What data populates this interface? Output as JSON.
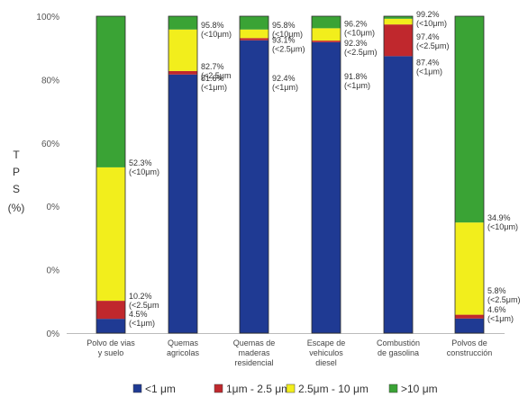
{
  "chart_data": {
    "type": "bar",
    "stacked": true,
    "ylabel": [
      "T",
      "P",
      "S",
      "(%)"
    ],
    "y_ticks": [
      "100%",
      "80%",
      "60%",
      "0%",
      "0%",
      "0%"
    ],
    "ylim": [
      0,
      100
    ],
    "grid": false,
    "legend_position": "bottom",
    "categories": [
      [
        "Polvo de vias",
        "y suelo"
      ],
      [
        "Quemas",
        "agricolas"
      ],
      [
        "Quemas de",
        "maderas",
        "residencial"
      ],
      [
        "Escape de",
        "vehiculos",
        "diesel"
      ],
      [
        "Combustión",
        "de gasolina"
      ],
      [
        "Polvos de",
        "construcción"
      ]
    ],
    "series": [
      {
        "name": "<1 μm",
        "color": "#1f3a93",
        "values": [
          4.5,
          81.6,
          92.4,
          91.8,
          87.4,
          4.6
        ]
      },
      {
        "name": "1μm - 2.5 μm",
        "color": "#c0282d",
        "values": [
          5.7,
          1.1,
          0.7,
          0.5,
          10.0,
          1.2
        ]
      },
      {
        "name": "2.5μm - 10 μm",
        "color": "#f2ee1c",
        "values": [
          42.1,
          13.1,
          2.7,
          3.9,
          1.8,
          29.1
        ]
      },
      {
        "name": ">10 μm",
        "color": "#3aa335",
        "values": [
          47.7,
          4.2,
          4.2,
          3.8,
          0.8,
          65.1
        ]
      }
    ],
    "annotations": [
      [
        {
          "lines": [
            "52.3%",
            "(<10μm)"
          ],
          "at": 52.3
        },
        {
          "lines": [
            "10.2%",
            "(<2.5μm"
          ],
          "at": 10.2
        },
        {
          "lines": [
            "4.5%",
            "(<1μm)"
          ],
          "at": 4.5
        }
      ],
      [
        {
          "lines": [
            "95.8%",
            "(<10μm)"
          ],
          "at": 95.8
        },
        {
          "lines": [
            "82.7%",
            "(<2.5μm"
          ],
          "at": 82.7
        },
        {
          "lines": [
            "81.6%",
            "(<1μm)"
          ],
          "at": 79.0
        }
      ],
      [
        {
          "lines": [
            "95.8%",
            "(<10μm)"
          ],
          "at": 95.8
        },
        {
          "lines": [
            "93.1%",
            "(<2.5μm)"
          ],
          "at": 91.0
        },
        {
          "lines": [
            "92.4%",
            "(<1μm)"
          ],
          "at": 79.0
        }
      ],
      [
        {
          "lines": [
            "96.2%",
            "(<10μm)"
          ],
          "at": 96.2
        },
        {
          "lines": [
            "92.3%",
            "(<2.5μm)"
          ],
          "at": 90.0
        },
        {
          "lines": [
            "91.8%",
            "(<1μm)"
          ],
          "at": 79.5
        }
      ],
      [
        {
          "lines": [
            "99.2%",
            "(<10μm)"
          ],
          "at": 99.2
        },
        {
          "lines": [
            "97.4%",
            "(<2.5μm)"
          ],
          "at": 92.0
        },
        {
          "lines": [
            "87.4%",
            "(<1μm)"
          ],
          "at": 84.0
        }
      ],
      [
        {
          "lines": [
            "34.9%",
            "(<10μm)"
          ],
          "at": 34.9
        },
        {
          "lines": [
            "5.8%",
            "(<2.5μm)"
          ],
          "at": 12.0
        },
        {
          "lines": [
            "4.6%",
            "(<1μm)"
          ],
          "at": 6.0
        }
      ]
    ]
  }
}
